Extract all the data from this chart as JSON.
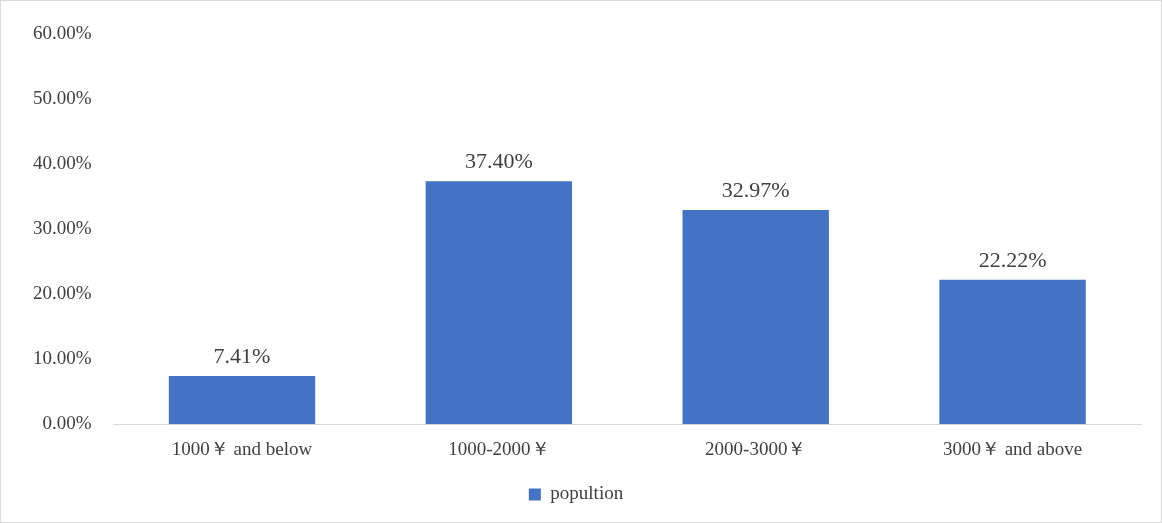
{
  "chart_data": {
    "type": "bar",
    "categories": [
      "1000￥ and below",
      "1000-2000￥",
      "2000-3000￥",
      "3000￥ and above"
    ],
    "series": [
      {
        "name": "popultion",
        "color": "#4472c4",
        "values": [
          7.41,
          37.4,
          32.97,
          22.22
        ],
        "value_labels": [
          "7.41%",
          "37.40%",
          "32.97%",
          "22.22%"
        ]
      }
    ],
    "ylim": [
      0,
      60
    ],
    "yticks": [
      {
        "value": 0,
        "label": "0.00%"
      },
      {
        "value": 10,
        "label": "10.00%"
      },
      {
        "value": 20,
        "label": "20.00%"
      },
      {
        "value": 30,
        "label": "30.00%"
      },
      {
        "value": 40,
        "label": "40.00%"
      },
      {
        "value": 50,
        "label": "50.00%"
      },
      {
        "value": 60,
        "label": "60.00%"
      }
    ],
    "grid": false,
    "legend": "bottom"
  }
}
